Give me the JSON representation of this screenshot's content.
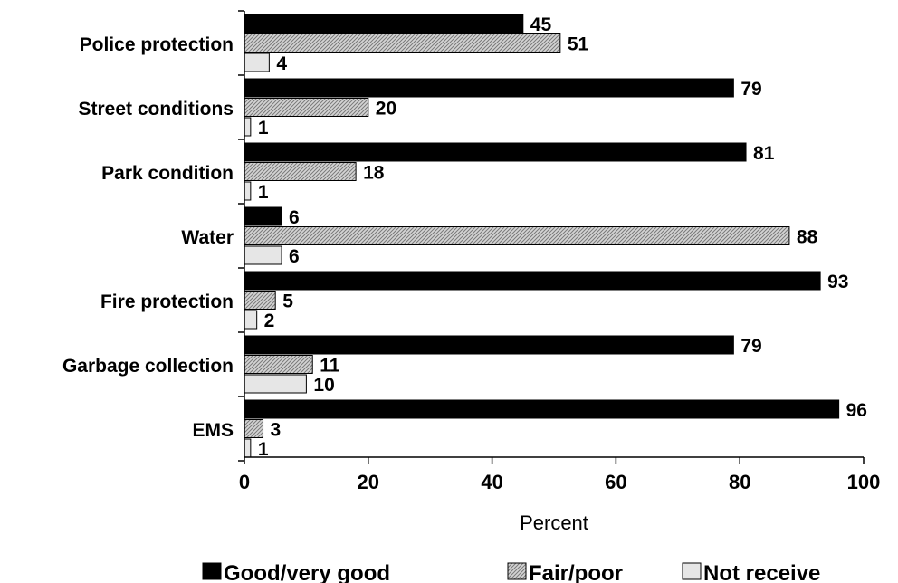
{
  "chart_data": {
    "type": "bar",
    "orientation": "horizontal",
    "categories": [
      "Police protection",
      "Street conditions",
      "Park condition",
      "Water",
      "Fire protection",
      "Garbage collection",
      "EMS"
    ],
    "series": [
      {
        "name": "Good/very good",
        "values": [
          45,
          79,
          81,
          6,
          93,
          79,
          96
        ],
        "color": "#000000",
        "pattern": "solid"
      },
      {
        "name": "Fair/poor",
        "values": [
          51,
          20,
          18,
          88,
          5,
          11,
          3
        ],
        "color": "#b8b8b8",
        "pattern": "diagonal-hatch"
      },
      {
        "name": "Not receive",
        "values": [
          4,
          1,
          1,
          6,
          2,
          10,
          1
        ],
        "color": "#e6e6e6",
        "pattern": "light"
      }
    ],
    "xlabel": "Percent",
    "ylabel": "",
    "xlim": [
      0,
      100
    ],
    "xticks": [
      "0",
      "20",
      "40",
      "60",
      "80",
      "100"
    ],
    "grid": false,
    "legend": "bottom"
  }
}
